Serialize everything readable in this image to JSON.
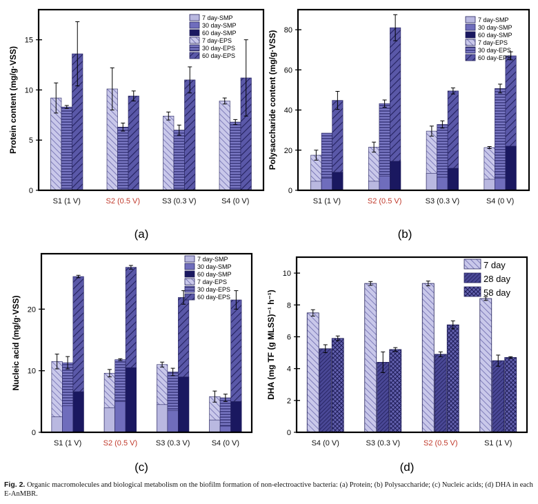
{
  "figure": {
    "caption_label": "Fig. 2.",
    "caption_text": "Organic macromolecules and biological metabolism on the biofilm formation of non-electroactive bacteria: (a) Protein; (b) Polysaccharide; (c) Nucleic acids; (d) DHA in each E-AnMBR."
  },
  "colors": {
    "smp_fill": "#b9b8e0",
    "eps_fill": "#5553a6",
    "highlight_label": "#c0392b",
    "dha_fill": "#6a68b4"
  },
  "chart_data": [
    {
      "panel": "(a)",
      "type": "bar",
      "ylabel": "Protein content (mg/g·VSS)",
      "ylim": [
        0,
        18
      ],
      "yticks": [
        0,
        5,
        10,
        15
      ],
      "categories": [
        "S1 (1 V)",
        "S2 (0.5 V)",
        "S3 (0.3 V)",
        "S4 (0 V)"
      ],
      "highlight_category": 1,
      "legend": [
        "7 day-SMP",
        "30 day-SMP",
        "60 day-SMP",
        "7 day-EPS",
        "30 day-EPS",
        "60 day-EPS"
      ],
      "series": [
        {
          "name": "7 day-SMP",
          "values": [
            0,
            0,
            0,
            0
          ]
        },
        {
          "name": "30 day-SMP",
          "values": [
            0,
            0,
            0,
            0
          ]
        },
        {
          "name": "60 day-SMP",
          "values": [
            0,
            0,
            0,
            0
          ]
        },
        {
          "name": "7 day-EPS",
          "values": [
            9.2,
            10.1,
            7.4,
            8.9
          ],
          "err": [
            1.5,
            2.1,
            0.4,
            0.3
          ]
        },
        {
          "name": "30 day-EPS",
          "values": [
            8.3,
            6.3,
            6.0,
            6.8
          ],
          "err": [
            0.15,
            0.4,
            0.5,
            0.25
          ]
        },
        {
          "name": "60 day-EPS",
          "values": [
            13.6,
            9.4,
            11.0,
            11.2
          ],
          "err": [
            3.2,
            0.5,
            1.3,
            3.8
          ]
        }
      ]
    },
    {
      "panel": "(b)",
      "type": "bar",
      "ylabel": "Polysaccharide content (mg/g·VSS)",
      "ylim": [
        0,
        90
      ],
      "yticks": [
        0,
        20,
        40,
        60,
        80
      ],
      "categories": [
        "S1 (1 V)",
        "S2 (0.5 V)",
        "S3 (0.3 V)",
        "S4 (0 V)"
      ],
      "highlight_category": 1,
      "legend": [
        "7 day-SMP",
        "30 day-SMP",
        "60 day-SMP",
        "7 day-EPS",
        "30 day-EPS",
        "60 day-EPS"
      ],
      "series": [
        {
          "name": "7 day-SMP",
          "values": [
            4.5,
            4.5,
            8.5,
            5.5
          ]
        },
        {
          "name": "30 day-SMP",
          "values": [
            6,
            7,
            6.5,
            6
          ]
        },
        {
          "name": "60 day-SMP",
          "values": [
            9,
            14.5,
            11,
            22
          ]
        },
        {
          "name": "7 day-EPS",
          "values": [
            17.5,
            21.5,
            29.5,
            21.3
          ],
          "err": [
            2.5,
            2.5,
            2.5,
            0.5
          ]
        },
        {
          "name": "30 day-EPS",
          "values": [
            28.5,
            43.2,
            32.8,
            50.7
          ],
          "err": [
            0,
            1.8,
            1.8,
            2.2
          ]
        },
        {
          "name": "60 day-EPS",
          "values": [
            44.8,
            81.0,
            49.5,
            67.0
          ],
          "err": [
            4.5,
            6.5,
            1.5,
            2.0
          ]
        }
      ]
    },
    {
      "panel": "(c)",
      "type": "bar",
      "ylabel": "Nucleic acid (mg/g·VSS)",
      "ylim": [
        0,
        29
      ],
      "yticks": [
        0,
        10,
        20
      ],
      "categories": [
        "S1 (1 V)",
        "S2 (0.5 V)",
        "S3 (0.3 V)",
        "S4 (0 V)"
      ],
      "highlight_category": 1,
      "legend": [
        "7 day-SMP",
        "30 day-SMP",
        "60 day-SMP",
        "7 day-EPS",
        "30 day-EPS",
        "60 day-EPS"
      ],
      "series": [
        {
          "name": "7 day-SMP",
          "values": [
            2.5,
            4.0,
            4.5,
            2.0
          ]
        },
        {
          "name": "30 day-SMP",
          "values": [
            4.3,
            5.0,
            3.5,
            1.0
          ]
        },
        {
          "name": "60 day-SMP",
          "values": [
            6.6,
            10.5,
            9.0,
            5.0
          ]
        },
        {
          "name": "7 day-EPS",
          "values": [
            11.5,
            9.6,
            11.0,
            5.8
          ],
          "err": [
            1.2,
            0.6,
            0.4,
            0.9
          ]
        },
        {
          "name": "30 day-EPS",
          "values": [
            11.3,
            11.8,
            9.8,
            5.6
          ],
          "err": [
            1.0,
            0.15,
            0.6,
            0.6
          ]
        },
        {
          "name": "60 day-EPS",
          "values": [
            25.3,
            26.8,
            21.9,
            21.5
          ],
          "err": [
            0.2,
            0.3,
            1.1,
            1.5
          ]
        }
      ]
    },
    {
      "panel": "(d)",
      "type": "bar",
      "ylabel": "DHA (mg TF (g MLSS)⁻¹ h⁻¹)",
      "ylim": [
        0,
        11
      ],
      "yticks": [
        0,
        2,
        4,
        6,
        8,
        10
      ],
      "categories": [
        "S4 (0 V)",
        "S3 (0.3 V)",
        "S2 (0.5 V)",
        "S1 (1 V)"
      ],
      "highlight_category": 2,
      "legend": [
        "7 day",
        "28 day",
        "58 day"
      ],
      "series": [
        {
          "name": "7 day",
          "values": [
            7.5,
            9.35,
            9.35,
            8.4
          ],
          "err": [
            0.2,
            0.12,
            0.15,
            0.12
          ]
        },
        {
          "name": "28 day",
          "values": [
            5.25,
            4.4,
            4.9,
            4.5
          ],
          "err": [
            0.25,
            0.65,
            0.15,
            0.35
          ]
        },
        {
          "name": "58 day",
          "values": [
            5.9,
            5.2,
            6.75,
            4.7
          ],
          "err": [
            0.15,
            0.12,
            0.25,
            0.05
          ]
        }
      ]
    }
  ]
}
